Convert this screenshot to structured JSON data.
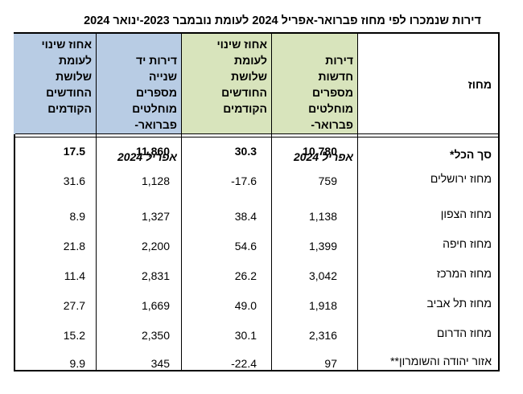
{
  "title": "דירות שנמכרו לפי מחוז פברואר-אפריל  2024 לעומת נובמבר 2023-ינואר 2024",
  "headers": {
    "region": "מחוז",
    "new_count_lines": "דירות\nחדשות\nמספרים\nמוחלטים\nפברואר-",
    "new_count_year": "אפריל 2024",
    "new_change": "אחוז   שינוי\nלעומת\nשלושת\nהחודשים\nהקודמים",
    "used_count_lines": "דירות    יד\nשנייה\nמספרים\nמוחלטים\nפברואר-",
    "used_count_year": "אפריל 2024",
    "used_change": "אחוז   שינוי\nלעומת\nשלושת\nהחודשים\nהקודמים"
  },
  "colors": {
    "green_header": "#d8e4bc",
    "blue_header": "#b8cce4"
  },
  "rows": [
    {
      "region": "סך הכל*",
      "new_count": "10,780",
      "new_change": "30.3",
      "used_count": "11,860",
      "used_change": "17.5",
      "bold": true
    },
    {
      "region": "מחוז ירושלים",
      "new_count": "759",
      "new_change": "-17.6",
      "used_count": "1,128",
      "used_change": "31.6"
    },
    {
      "region": "מחוז הצפון",
      "new_count": "1,138",
      "new_change": "38.4",
      "used_count": "1,327",
      "used_change": "8.9"
    },
    {
      "region": "מחוז חיפה",
      "new_count": "1,399",
      "new_change": "54.6",
      "used_count": "2,200",
      "used_change": "21.8"
    },
    {
      "region": "מחוז המרכז",
      "new_count": "3,042",
      "new_change": "26.2",
      "used_count": "2,831",
      "used_change": "11.4"
    },
    {
      "region": "מחוז תל אביב",
      "new_count": "1,918",
      "new_change": "49.0",
      "used_count": "1,669",
      "used_change": "27.7"
    },
    {
      "region": "מחוז הדרום",
      "new_count": "2,316",
      "new_change": "30.1",
      "used_count": "2,350",
      "used_change": "15.2"
    },
    {
      "region": "אזור יהודה והשומרון**",
      "new_count": "97",
      "new_change": "-22.4",
      "used_count": "345",
      "used_change": "9.9"
    }
  ]
}
